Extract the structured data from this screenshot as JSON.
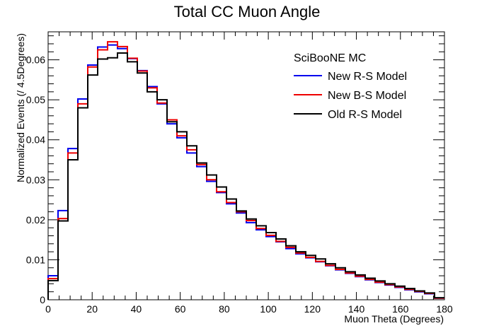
{
  "chart_data": {
    "type": "line",
    "title": "Total CC Muon Angle",
    "xlabel": "Muon Theta (Degrees)",
    "ylabel": "Normalized Events (/ 4.5Degrees)",
    "xlim": [
      0,
      180
    ],
    "ylim": [
      0,
      0.067
    ],
    "xticks": [
      "0",
      "20",
      "40",
      "60",
      "80",
      "100",
      "120",
      "140",
      "160",
      "180"
    ],
    "xtick_values": [
      0,
      20,
      40,
      60,
      80,
      100,
      120,
      140,
      160,
      180
    ],
    "yticks": [
      "0",
      "0.01",
      "0.02",
      "0.03",
      "0.04",
      "0.05",
      "0.06"
    ],
    "ytick_values": [
      0,
      0.01,
      0.02,
      0.03,
      0.04,
      0.05,
      0.06
    ],
    "grid": false,
    "legend_title": "SciBooNE MC",
    "legend_position": "top-right",
    "bin_width": 4.5,
    "bin_edges": [
      0,
      4.5,
      9,
      13.5,
      18,
      22.5,
      27,
      31.5,
      36,
      40.5,
      45,
      49.5,
      54,
      58.5,
      63,
      67.5,
      72,
      76.5,
      81,
      85.5,
      90,
      94.5,
      99,
      103.5,
      108,
      112.5,
      117,
      121.5,
      126,
      130.5,
      135,
      139.5,
      144,
      148.5,
      153,
      157.5,
      162,
      166.5,
      171,
      175.5,
      180
    ],
    "series": [
      {
        "name": "New R-S Model",
        "color": "#0000ee",
        "values": [
          0.006,
          0.0223,
          0.0378,
          0.0502,
          0.0587,
          0.0632,
          0.0637,
          0.0628,
          0.0603,
          0.0573,
          0.0533,
          0.049,
          0.044,
          0.0405,
          0.0367,
          0.0333,
          0.0296,
          0.0268,
          0.024,
          0.0217,
          0.0193,
          0.0175,
          0.0158,
          0.0145,
          0.0128,
          0.0115,
          0.0105,
          0.0095,
          0.0085,
          0.0075,
          0.0066,
          0.0058,
          0.005,
          0.0043,
          0.0037,
          0.0031,
          0.0025,
          0.002,
          0.0015,
          0.0004
        ]
      },
      {
        "name": "New B-S Model",
        "color": "#ee0000",
        "values": [
          0.0053,
          0.0203,
          0.0367,
          0.049,
          0.0582,
          0.0625,
          0.0645,
          0.0633,
          0.0604,
          0.0572,
          0.053,
          0.0492,
          0.045,
          0.041,
          0.0375,
          0.0338,
          0.03,
          0.027,
          0.0243,
          0.022,
          0.0198,
          0.0178,
          0.0161,
          0.0146,
          0.0131,
          0.0117,
          0.0106,
          0.0096,
          0.0086,
          0.0076,
          0.0067,
          0.0059,
          0.0051,
          0.0044,
          0.0038,
          0.0032,
          0.0026,
          0.0021,
          0.0016,
          0.0004
        ]
      },
      {
        "name": "Old R-S Model",
        "color": "#000000",
        "values": [
          0.0048,
          0.0197,
          0.035,
          0.048,
          0.0562,
          0.0602,
          0.0605,
          0.0617,
          0.0595,
          0.0567,
          0.052,
          0.05,
          0.0445,
          0.042,
          0.0385,
          0.0342,
          0.0312,
          0.0282,
          0.0252,
          0.0222,
          0.0202,
          0.0185,
          0.0168,
          0.0152,
          0.0135,
          0.012,
          0.0111,
          0.0102,
          0.009,
          0.008,
          0.007,
          0.0062,
          0.0054,
          0.0047,
          0.004,
          0.0034,
          0.0028,
          0.0022,
          0.0017,
          0.0005
        ]
      }
    ]
  }
}
